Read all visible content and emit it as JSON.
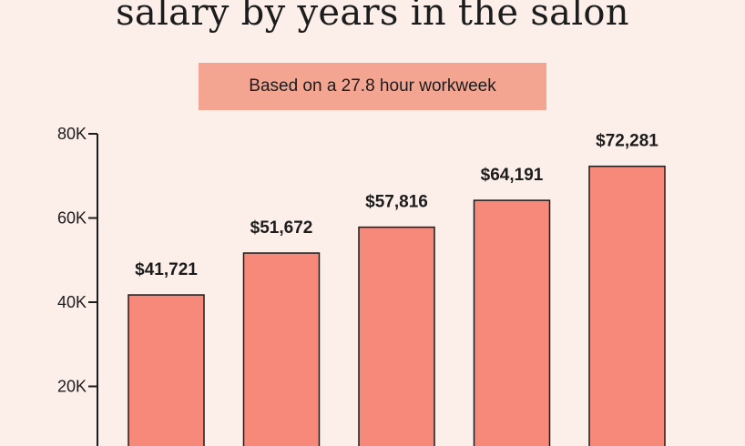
{
  "chart_data": {
    "type": "bar",
    "title": "salary by years in the salon",
    "subtitle": "Based on a 27.8 hour workweek",
    "categories": [
      "",
      "",
      "",
      "",
      ""
    ],
    "values": [
      41721,
      51672,
      57816,
      64191,
      72281
    ],
    "data_labels": [
      "$41,721",
      "$51,672",
      "$57,816",
      "$64,191",
      "$72,281"
    ],
    "ylim": [
      0,
      80000
    ],
    "yticks": [
      {
        "value": 20000,
        "label": "20K"
      },
      {
        "value": 40000,
        "label": "40K"
      },
      {
        "value": 60000,
        "label": "60K"
      },
      {
        "value": 80000,
        "label": "80K"
      }
    ],
    "grid": false,
    "bar_color": "#f6897a",
    "bar_stroke": "#1c1c1c",
    "subtitle_bg": "#f4a592",
    "background": "#fcefea"
  }
}
